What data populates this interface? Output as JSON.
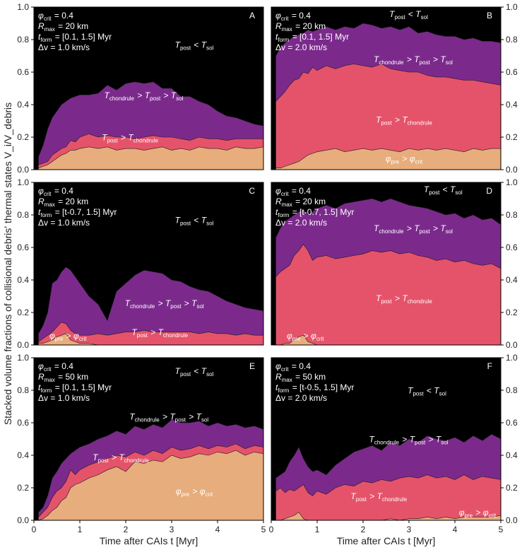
{
  "colors": {
    "background": "#000000",
    "cold": "#000000",
    "mid": "#7b2a8c",
    "hot": "#e5536a",
    "pre": "#e7ad7c"
  },
  "chart_data": {
    "type": "area",
    "stacked": true,
    "xlabel": "Time after CAIs t [Myr]",
    "ylabel": "Stacked volume fractions of collisional debris' thermal states V_i/V_debris",
    "xlim": [
      0,
      5
    ],
    "ylim": [
      0,
      1
    ],
    "xticks": [
      "0",
      "1",
      "2",
      "3",
      "4",
      "5"
    ],
    "yticks": [
      "0.0",
      "0.2",
      "0.4",
      "0.6",
      "0.8",
      "1.0"
    ],
    "layer_order": [
      "φpre > φcrit",
      "Tpost > Tchondrule",
      "Tchondrule > Tpost > Tsol",
      "Tpost < Tsol"
    ],
    "x": [
      0.1,
      0.2,
      0.3,
      0.4,
      0.5,
      0.6,
      0.7,
      0.8,
      0.9,
      1.0,
      1.2,
      1.4,
      1.6,
      1.8,
      2.0,
      2.2,
      2.4,
      2.6,
      2.8,
      3.0,
      3.2,
      3.4,
      3.6,
      3.8,
      4.0,
      4.2,
      4.4,
      4.6,
      4.8,
      5.0
    ],
    "panels": [
      {
        "letter": "A",
        "params": [
          "φcrit = 0.4",
          "Rmax = 20 km",
          "tform = [0.1, 1.5] Myr",
          "Δv = 1.0 km/s"
        ],
        "region_labels": {
          "cold": "Tpost < Tsol",
          "mid": "Tchondrule > Tpost > Tsol",
          "hot": "Tpost > Tchondrule",
          "pre": ""
        },
        "cumulative": {
          "pre": [
            0.01,
            0.02,
            0.03,
            0.05,
            0.07,
            0.09,
            0.1,
            0.12,
            0.12,
            0.13,
            0.14,
            0.13,
            0.14,
            0.12,
            0.13,
            0.13,
            0.12,
            0.13,
            0.14,
            0.12,
            0.13,
            0.12,
            0.14,
            0.13,
            0.13,
            0.12,
            0.14,
            0.13,
            0.13,
            0.14
          ],
          "hot": [
            0.03,
            0.04,
            0.05,
            0.09,
            0.11,
            0.13,
            0.14,
            0.18,
            0.17,
            0.2,
            0.22,
            0.2,
            0.21,
            0.2,
            0.2,
            0.19,
            0.2,
            0.21,
            0.2,
            0.2,
            0.19,
            0.18,
            0.2,
            0.19,
            0.19,
            0.18,
            0.19,
            0.19,
            0.19,
            0.19
          ],
          "mid": [
            0.08,
            0.15,
            0.25,
            0.32,
            0.36,
            0.4,
            0.42,
            0.44,
            0.45,
            0.46,
            0.46,
            0.47,
            0.52,
            0.49,
            0.53,
            0.54,
            0.53,
            0.54,
            0.5,
            0.5,
            0.45,
            0.45,
            0.42,
            0.4,
            0.36,
            0.33,
            0.32,
            0.3,
            0.28,
            0.27
          ]
        }
      },
      {
        "letter": "B",
        "params": [
          "φcrit = 0.4",
          "Rmax = 20 km",
          "tform = [0.1, 1.5] Myr",
          "Δv = 2.0 km/s"
        ],
        "region_labels": {
          "cold": "Tpost < Tsol",
          "mid": "Tchondrule > Tpost > Tsol",
          "hot": "Tpost > Tchondrule",
          "pre": "φpre > φcrit"
        },
        "cumulative": {
          "pre": [
            0.01,
            0.01,
            0.02,
            0.03,
            0.04,
            0.05,
            0.07,
            0.09,
            0.1,
            0.11,
            0.12,
            0.13,
            0.11,
            0.12,
            0.13,
            0.12,
            0.13,
            0.12,
            0.11,
            0.13,
            0.12,
            0.13,
            0.12,
            0.13,
            0.12,
            0.11,
            0.13,
            0.12,
            0.13,
            0.13
          ],
          "hot": [
            0.42,
            0.45,
            0.48,
            0.52,
            0.55,
            0.56,
            0.6,
            0.59,
            0.63,
            0.61,
            0.64,
            0.62,
            0.64,
            0.65,
            0.64,
            0.63,
            0.65,
            0.62,
            0.61,
            0.6,
            0.6,
            0.58,
            0.57,
            0.57,
            0.56,
            0.55,
            0.55,
            0.54,
            0.53,
            0.52
          ],
          "mid": [
            0.7,
            0.75,
            0.78,
            0.8,
            0.82,
            0.83,
            0.84,
            0.86,
            0.85,
            0.86,
            0.88,
            0.86,
            0.88,
            0.87,
            0.9,
            0.89,
            0.87,
            0.88,
            0.86,
            0.88,
            0.84,
            0.85,
            0.83,
            0.82,
            0.82,
            0.8,
            0.81,
            0.79,
            0.79,
            0.78
          ]
        }
      },
      {
        "letter": "C",
        "params": [
          "φcrit = 0.4",
          "Rmax = 20 km",
          "tform = [t-0.7, 1.5] Myr",
          "Δv = 1.0 km/s"
        ],
        "region_labels": {
          "cold": "Tpost < Tsol",
          "mid": "Tchondrule > Tpost > Tsol",
          "hot": "Tpost > Tchondrule",
          "pre": "φpre > φcrit"
        },
        "cumulative": {
          "pre": [
            0.01,
            0.01,
            0.02,
            0.03,
            0.05,
            0.06,
            0.07,
            0.03,
            0.02,
            0.01,
            0.01,
            0.0,
            0.0,
            0.0,
            0.0,
            0.0,
            0.0,
            0.0,
            0.0,
            0.0,
            0.0,
            0.0,
            0.0,
            0.0,
            0.0,
            0.0,
            0.0,
            0.0,
            0.0,
            0.0
          ],
          "hot": [
            0.02,
            0.04,
            0.06,
            0.08,
            0.11,
            0.14,
            0.13,
            0.09,
            0.07,
            0.06,
            0.06,
            0.07,
            0.06,
            0.07,
            0.08,
            0.08,
            0.09,
            0.08,
            0.08,
            0.08,
            0.08,
            0.08,
            0.07,
            0.08,
            0.07,
            0.07,
            0.06,
            0.07,
            0.06,
            0.06
          ],
          "mid": [
            0.07,
            0.12,
            0.2,
            0.38,
            0.4,
            0.45,
            0.48,
            0.46,
            0.42,
            0.38,
            0.3,
            0.25,
            0.15,
            0.33,
            0.38,
            0.43,
            0.46,
            0.45,
            0.44,
            0.4,
            0.39,
            0.36,
            0.34,
            0.33,
            0.3,
            0.27,
            0.25,
            0.23,
            0.22,
            0.21
          ]
        }
      },
      {
        "letter": "D",
        "params": [
          "φcrit = 0.4",
          "Rmax = 20 km",
          "tform = [t-0.7, 1.5] Myr",
          "Δv = 2.0 km/s"
        ],
        "region_labels": {
          "cold": "Tpost < Tsol",
          "mid": "Tchondrule > Tpost > Tsol",
          "hot": "Tpost > Tchondrule",
          "pre": "φpre > φcrit"
        },
        "cumulative": {
          "pre": [
            0.0,
            0.0,
            0.01,
            0.01,
            0.03,
            0.05,
            0.06,
            0.02,
            0.01,
            0.0,
            0.0,
            0.0,
            0.0,
            0.0,
            0.0,
            0.0,
            0.0,
            0.0,
            0.0,
            0.0,
            0.0,
            0.0,
            0.0,
            0.0,
            0.0,
            0.0,
            0.0,
            0.0,
            0.0,
            0.0
          ],
          "hot": [
            0.42,
            0.45,
            0.47,
            0.49,
            0.55,
            0.58,
            0.62,
            0.58,
            0.52,
            0.54,
            0.55,
            0.53,
            0.54,
            0.55,
            0.56,
            0.58,
            0.57,
            0.58,
            0.56,
            0.57,
            0.55,
            0.54,
            0.52,
            0.53,
            0.51,
            0.52,
            0.5,
            0.49,
            0.5,
            0.47
          ],
          "mid": [
            0.66,
            0.72,
            0.76,
            0.78,
            0.8,
            0.82,
            0.83,
            0.8,
            0.82,
            0.84,
            0.86,
            0.84,
            0.87,
            0.88,
            0.89,
            0.9,
            0.88,
            0.9,
            0.88,
            0.86,
            0.85,
            0.84,
            0.82,
            0.8,
            0.81,
            0.78,
            0.8,
            0.77,
            0.78,
            0.74
          ]
        }
      },
      {
        "letter": "E",
        "params": [
          "φcrit = 0.4",
          "Rmax = 50 km",
          "tform = [0.1, 1.5] Myr",
          "Δv = 1.0 km/s"
        ],
        "region_labels": {
          "cold": "Tpost < Tsol",
          "mid": "Tchondrule > Tpost > Tsol",
          "hot": "Tpost > Tchondrule",
          "pre": "φpre > φcrit"
        },
        "cumulative": {
          "pre": [
            0.0,
            0.01,
            0.03,
            0.06,
            0.08,
            0.12,
            0.14,
            0.2,
            0.22,
            0.23,
            0.26,
            0.28,
            0.31,
            0.33,
            0.3,
            0.36,
            0.35,
            0.37,
            0.36,
            0.4,
            0.38,
            0.39,
            0.41,
            0.4,
            0.42,
            0.41,
            0.43,
            0.4,
            0.42,
            0.41
          ],
          "hot": [
            0.02,
            0.05,
            0.08,
            0.14,
            0.18,
            0.2,
            0.24,
            0.31,
            0.28,
            0.31,
            0.34,
            0.36,
            0.38,
            0.4,
            0.39,
            0.42,
            0.4,
            0.43,
            0.41,
            0.45,
            0.43,
            0.44,
            0.46,
            0.44,
            0.46,
            0.45,
            0.47,
            0.44,
            0.46,
            0.45
          ],
          "mid": [
            0.05,
            0.08,
            0.15,
            0.26,
            0.3,
            0.35,
            0.38,
            0.41,
            0.43,
            0.45,
            0.47,
            0.5,
            0.52,
            0.55,
            0.53,
            0.58,
            0.56,
            0.59,
            0.57,
            0.62,
            0.6,
            0.6,
            0.61,
            0.58,
            0.6,
            0.58,
            0.59,
            0.57,
            0.58,
            0.56
          ]
        }
      },
      {
        "letter": "F",
        "params": [
          "φcrit = 0.4",
          "Rmax = 50 km",
          "tform = [t-0.5, 1.5] Myr",
          "Δv = 2.0 km/s"
        ],
        "region_labels": {
          "cold": "Tpost < Tsol",
          "mid": "Tchondrule > Tpost > Tsol",
          "hot": "Tpost > Tchondrule",
          "pre": "φpre > φcrit"
        },
        "cumulative": {
          "pre": [
            0.0,
            0.0,
            0.01,
            0.02,
            0.03,
            0.05,
            0.01,
            0.0,
            0.0,
            0.0,
            0.0,
            0.0,
            0.0,
            0.0,
            0.0,
            0.0,
            0.0,
            0.01,
            0.0,
            0.01,
            0.01,
            0.02,
            0.01,
            0.02,
            0.01,
            0.02,
            0.02,
            0.02,
            0.02,
            0.03
          ],
          "hot": [
            0.18,
            0.2,
            0.17,
            0.19,
            0.18,
            0.2,
            0.22,
            0.17,
            0.15,
            0.18,
            0.16,
            0.2,
            0.22,
            0.21,
            0.24,
            0.23,
            0.25,
            0.24,
            0.26,
            0.27,
            0.26,
            0.28,
            0.26,
            0.27,
            0.25,
            0.28,
            0.25,
            0.27,
            0.26,
            0.25
          ],
          "mid": [
            0.26,
            0.28,
            0.3,
            0.36,
            0.4,
            0.45,
            0.38,
            0.33,
            0.3,
            0.31,
            0.28,
            0.34,
            0.38,
            0.42,
            0.44,
            0.46,
            0.43,
            0.48,
            0.46,
            0.5,
            0.48,
            0.52,
            0.5,
            0.49,
            0.51,
            0.48,
            0.52,
            0.49,
            0.53,
            0.5
          ]
        }
      }
    ]
  }
}
